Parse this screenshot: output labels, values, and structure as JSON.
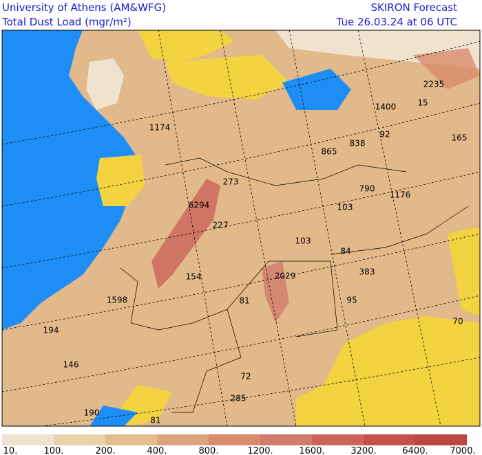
{
  "header": {
    "left": [
      "University of Athens (AM&WFG)",
      "Total Dust Load (mgr/m²)"
    ],
    "right": [
      "SKIRON Forecast",
      "Tue 26.03.24 at 06 UTC"
    ]
  },
  "map": {
    "labels": [
      "1174",
      "2235",
      "1400",
      "15",
      "165",
      "92",
      "838",
      "865",
      "790",
      "1176",
      "273",
      "6294",
      "227",
      "103",
      "103",
      "84",
      "383",
      "2029",
      "154",
      "81",
      "95",
      "1598",
      "194",
      "146",
      "72",
      "285",
      "190",
      "81",
      "70"
    ]
  },
  "colorbar": {
    "labels": [
      "10.",
      "100.",
      "200.",
      "400.",
      "800.",
      "1200.",
      "1600.",
      "3200.",
      "6400.",
      "7000."
    ],
    "colors": [
      "#efe3d0",
      "#e9d2a8",
      "#e4bd8c",
      "#dca47c",
      "#d98b6c",
      "#cf7c6c",
      "#cc645a",
      "#c8504b",
      "#bd4640"
    ]
  }
}
